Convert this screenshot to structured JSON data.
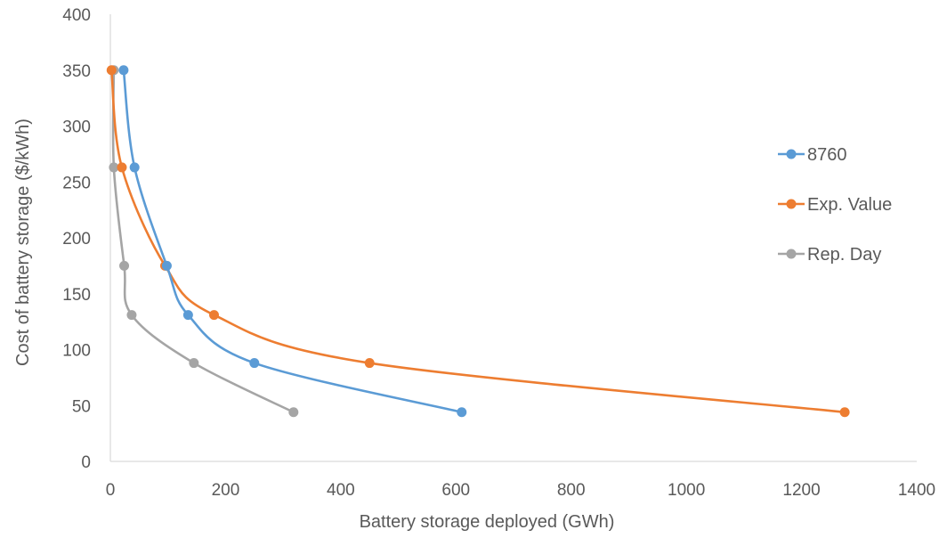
{
  "chart_data": {
    "type": "scatter",
    "title": "",
    "xlabel": "Battery storage deployed (GWh)",
    "ylabel": "Cost of battery storage ($/kWh)",
    "xlim": [
      0,
      1400
    ],
    "ylim": [
      0,
      400
    ],
    "x_ticks": [
      0,
      200,
      400,
      600,
      800,
      1000,
      1200,
      1400
    ],
    "y_ticks": [
      0,
      50,
      100,
      150,
      200,
      250,
      300,
      350,
      400
    ],
    "grid": false,
    "legend_position": "right",
    "smooth_lines": true,
    "series": [
      {
        "name": "8760",
        "color": "#5B9BD5",
        "points": [
          {
            "x": 610,
            "y": 44
          },
          {
            "x": 250,
            "y": 88
          },
          {
            "x": 135,
            "y": 131
          },
          {
            "x": 98,
            "y": 175
          },
          {
            "x": 42,
            "y": 263
          },
          {
            "x": 23,
            "y": 350
          }
        ]
      },
      {
        "name": "Exp. Value",
        "color": "#ED7D31",
        "points": [
          {
            "x": 1275,
            "y": 44
          },
          {
            "x": 450,
            "y": 88
          },
          {
            "x": 180,
            "y": 131
          },
          {
            "x": 95,
            "y": 175
          },
          {
            "x": 20,
            "y": 263
          },
          {
            "x": 2,
            "y": 350
          }
        ]
      },
      {
        "name": "Rep. Day",
        "color": "#A5A5A5",
        "points": [
          {
            "x": 318,
            "y": 44
          },
          {
            "x": 145,
            "y": 88
          },
          {
            "x": 37,
            "y": 131
          },
          {
            "x": 24,
            "y": 175
          },
          {
            "x": 6,
            "y": 263
          },
          {
            "x": 6,
            "y": 350
          }
        ]
      }
    ]
  }
}
